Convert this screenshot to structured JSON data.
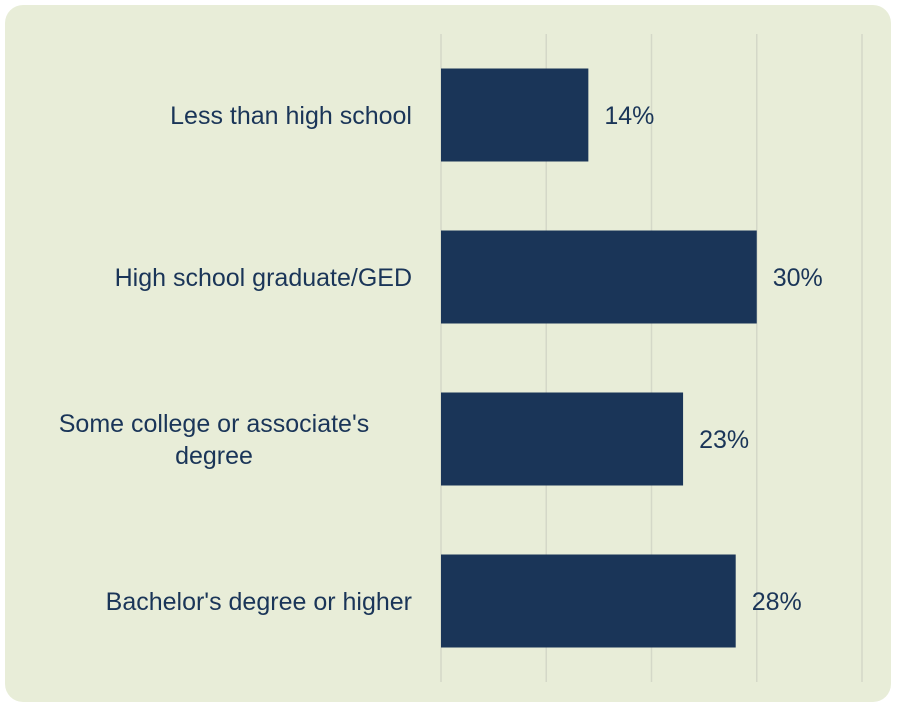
{
  "chart_data": {
    "type": "bar",
    "orientation": "horizontal",
    "categories": [
      "Less than high school",
      "High school graduate/GED",
      "Some college or associate's degree",
      "Bachelor's degree or higher"
    ],
    "category_lines": [
      [
        "Less than high school"
      ],
      [
        "High school graduate/GED"
      ],
      [
        "Some college or associate's",
        "degree"
      ],
      [
        "Bachelor's degree or higher"
      ]
    ],
    "values": [
      14,
      30,
      23,
      28
    ],
    "value_labels": [
      "14%",
      "30%",
      "23%",
      "28%"
    ],
    "xlim": [
      0,
      40
    ],
    "grid": true,
    "colors": {
      "bar": "#1a3558",
      "text": "#1a3558",
      "gridline": "#d4d8c8",
      "panel": "#e8edd8"
    }
  }
}
